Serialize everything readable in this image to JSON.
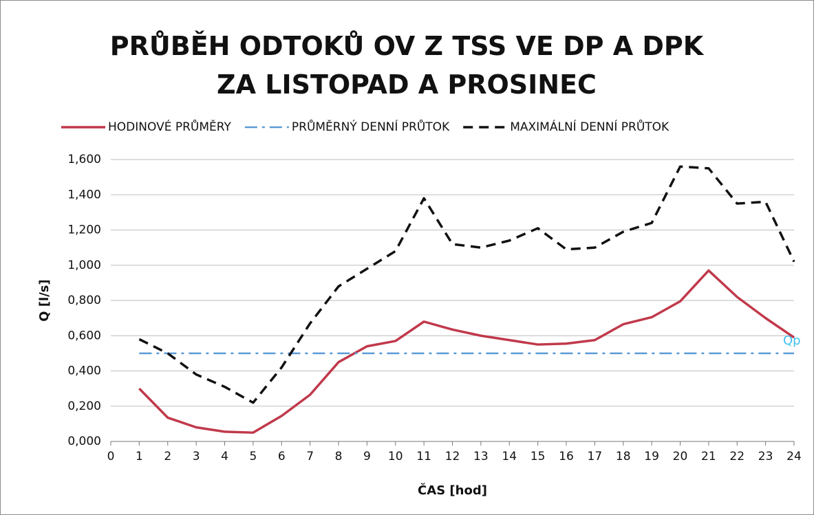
{
  "chart_data": {
    "type": "line",
    "title": "PRŮBĚH ODTOKŮ OV Z TSS VE DP A DPK ZA LISTOPAD A PROSINEC",
    "x_label": "ČAS [hod]",
    "y_label": "Q [l/s]",
    "annotation": "Qp",
    "x": [
      1,
      2,
      3,
      4,
      5,
      6,
      7,
      8,
      9,
      10,
      11,
      12,
      13,
      14,
      15,
      16,
      17,
      18,
      19,
      20,
      21,
      22,
      23,
      24
    ],
    "series": [
      {
        "name": "HODINOVÉ PRŮMĚRY",
        "color": "#c0394b",
        "dash": "solid",
        "values": [
          0.3,
          0.135,
          0.08,
          0.055,
          0.05,
          0.145,
          0.265,
          0.45,
          0.54,
          0.57,
          0.68,
          0.635,
          0.6,
          0.575,
          0.55,
          0.555,
          0.575,
          0.665,
          0.705,
          0.795,
          0.97,
          0.82,
          0.7,
          0.59
        ]
      },
      {
        "name": "PRŮMĚRNÝ DENNÍ PRŮTOK",
        "color": "#5b9bd5",
        "dash": "dashdot",
        "values": [
          0.5,
          0.5,
          0.5,
          0.5,
          0.5,
          0.5,
          0.5,
          0.5,
          0.5,
          0.5,
          0.5,
          0.5,
          0.5,
          0.5,
          0.5,
          0.5,
          0.5,
          0.5,
          0.5,
          0.5,
          0.5,
          0.5,
          0.5,
          0.5
        ]
      },
      {
        "name": "MAXIMÁLNÍ DENNÍ PRŮTOK",
        "color": "#111111",
        "dash": "dash",
        "values": [
          0.58,
          0.5,
          0.38,
          0.31,
          0.22,
          0.42,
          0.67,
          0.88,
          0.98,
          1.08,
          1.38,
          1.12,
          1.1,
          1.14,
          1.21,
          1.09,
          1.1,
          1.19,
          1.24,
          1.56,
          1.55,
          1.35,
          1.36,
          1.02
        ]
      }
    ],
    "xlim": [
      0,
      24
    ],
    "xticks": [
      0,
      1,
      2,
      3,
      4,
      5,
      6,
      7,
      8,
      9,
      10,
      11,
      12,
      13,
      14,
      15,
      16,
      17,
      18,
      19,
      20,
      21,
      22,
      23,
      24
    ],
    "ylim": [
      0,
      1.6
    ],
    "yticks": [
      {
        "value": 0,
        "label": "0,000"
      },
      {
        "value": 0.2,
        "label": "0,200"
      },
      {
        "value": 0.4,
        "label": "0,400"
      },
      {
        "value": 0.6,
        "label": "0,600"
      },
      {
        "value": 0.8,
        "label": "0,800"
      },
      {
        "value": 1.0,
        "label": "1,000"
      },
      {
        "value": 1.2,
        "label": "1,200"
      },
      {
        "value": 1.4,
        "label": "1,400"
      },
      {
        "value": 1.6,
        "label": "1,600"
      }
    ],
    "grid": true,
    "legend": "top"
  }
}
